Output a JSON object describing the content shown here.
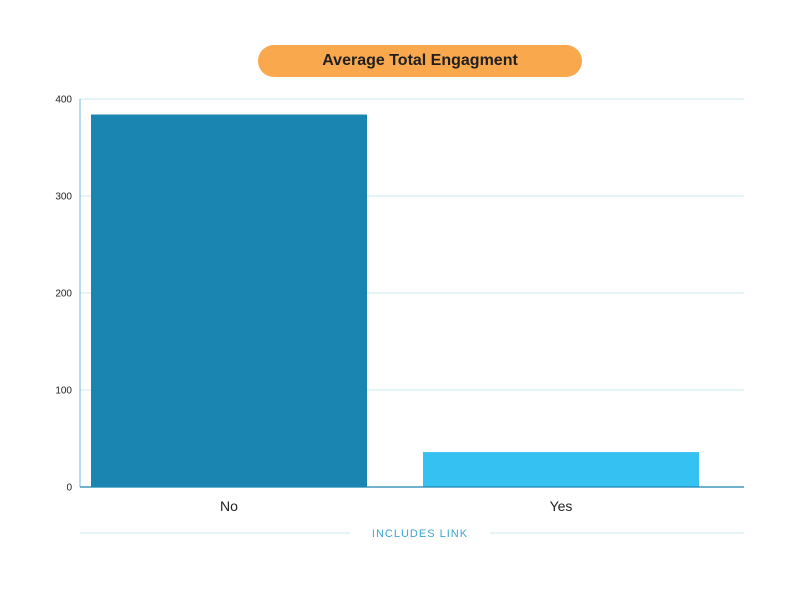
{
  "chart_data": {
    "type": "bar",
    "title": "Average Total Engagment",
    "categories": [
      "No",
      "Yes"
    ],
    "values": [
      384,
      36
    ],
    "xlabel": "INCLUDES LINK",
    "ylabel": "",
    "ylim": [
      0,
      400
    ],
    "yticks": [
      0,
      100,
      200,
      300,
      400
    ],
    "grid": true,
    "legend": "none",
    "colors": [
      "#1A85B0",
      "#35C2F2"
    ],
    "title_background": "#F9A84D"
  }
}
